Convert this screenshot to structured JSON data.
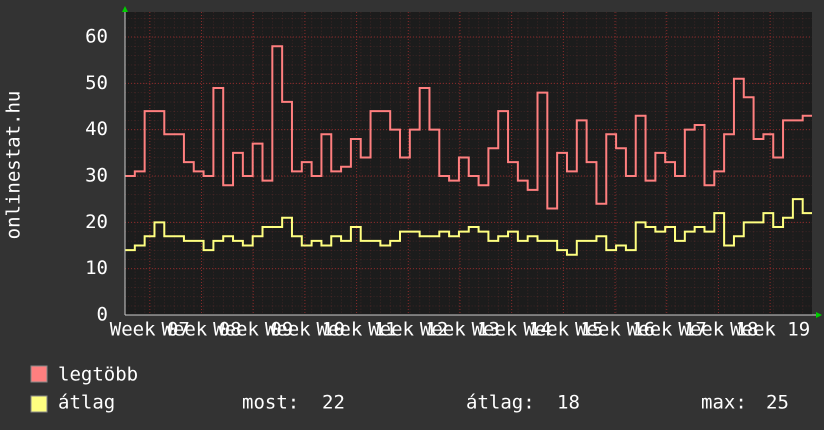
{
  "chart_data": {
    "type": "line",
    "y_label": "onlinestat.hu",
    "x": [
      6.52,
      6.71,
      6.9,
      7.09,
      7.28,
      7.47,
      7.66,
      7.85,
      8.04,
      8.23,
      8.42,
      8.61,
      8.8,
      8.99,
      9.18,
      9.37,
      9.56,
      9.75,
      9.94,
      10.13,
      10.32,
      10.51,
      10.7,
      10.89,
      11.08,
      11.27,
      11.46,
      11.65,
      11.84,
      12.03,
      12.22,
      12.41,
      12.6,
      12.79,
      12.98,
      13.17,
      13.36,
      13.55,
      13.74,
      13.93,
      14.12,
      14.31,
      14.5,
      14.69,
      14.88,
      15.07,
      15.26,
      15.45,
      15.64,
      15.83,
      16.02,
      16.21,
      16.4,
      16.59,
      16.78,
      16.97,
      17.16,
      17.35,
      17.54,
      17.73,
      17.92,
      18.11,
      18.3,
      18.49,
      18.68,
      18.87,
      19.06,
      19.25,
      19.44,
      19.63
    ],
    "series": [
      {
        "name": "legtöbb",
        "color": "#ff7f7f",
        "values": [
          30,
          31,
          44,
          44,
          39,
          39,
          33,
          31,
          30,
          49,
          28,
          35,
          30,
          37,
          29,
          58,
          46,
          31,
          33,
          30,
          39,
          31,
          32,
          38,
          34,
          44,
          44,
          40,
          34,
          40,
          49,
          40,
          30,
          29,
          34,
          30,
          28,
          36,
          44,
          33,
          29,
          27,
          48,
          23,
          35,
          31,
          42,
          33,
          24,
          39,
          36,
          30,
          43,
          29,
          35,
          33,
          30,
          40,
          41,
          28,
          31,
          39,
          51,
          47,
          38,
          39,
          34,
          42,
          42,
          43
        ]
      },
      {
        "name": "átlag",
        "color": "#ffff80",
        "values": [
          14,
          15,
          17,
          20,
          17,
          17,
          16,
          16,
          14,
          16,
          17,
          16,
          15,
          17,
          19,
          19,
          21,
          17,
          15,
          16,
          15,
          17,
          16,
          19,
          16,
          16,
          15,
          16,
          18,
          18,
          17,
          17,
          18,
          17,
          18,
          19,
          18,
          16,
          17,
          18,
          16,
          17,
          16,
          16,
          14,
          13,
          16,
          16,
          17,
          14,
          15,
          14,
          20,
          19,
          18,
          19,
          16,
          18,
          19,
          18,
          22,
          15,
          17,
          20,
          20,
          22,
          19,
          21,
          25,
          22
        ]
      }
    ],
    "xlim": [
      6.52,
      19.81
    ],
    "xticks": [
      {
        "value": 7,
        "label": "Week 07"
      },
      {
        "value": 8,
        "label": "Week 08"
      },
      {
        "value": 9,
        "label": "Week 09"
      },
      {
        "value": 10,
        "label": "Week 10"
      },
      {
        "value": 11,
        "label": "Week 11"
      },
      {
        "value": 12,
        "label": "Week 12"
      },
      {
        "value": 13,
        "label": "Week 13"
      },
      {
        "value": 14,
        "label": "Week 14"
      },
      {
        "value": 15,
        "label": "Week 15"
      },
      {
        "value": 16,
        "label": "Week 16"
      },
      {
        "value": 17,
        "label": "Week 17"
      },
      {
        "value": 18,
        "label": "Week 18"
      },
      {
        "value": 19,
        "label": "Week 19"
      }
    ],
    "ylim": [
      0,
      65.4
    ],
    "yticks": [
      0,
      10,
      20,
      30,
      40,
      50,
      60
    ],
    "grid": true,
    "stats": [
      {
        "label": "most:",
        "value": 22
      },
      {
        "label": "átlag:",
        "value": 18
      },
      {
        "label": "max:",
        "value": 25
      }
    ]
  }
}
